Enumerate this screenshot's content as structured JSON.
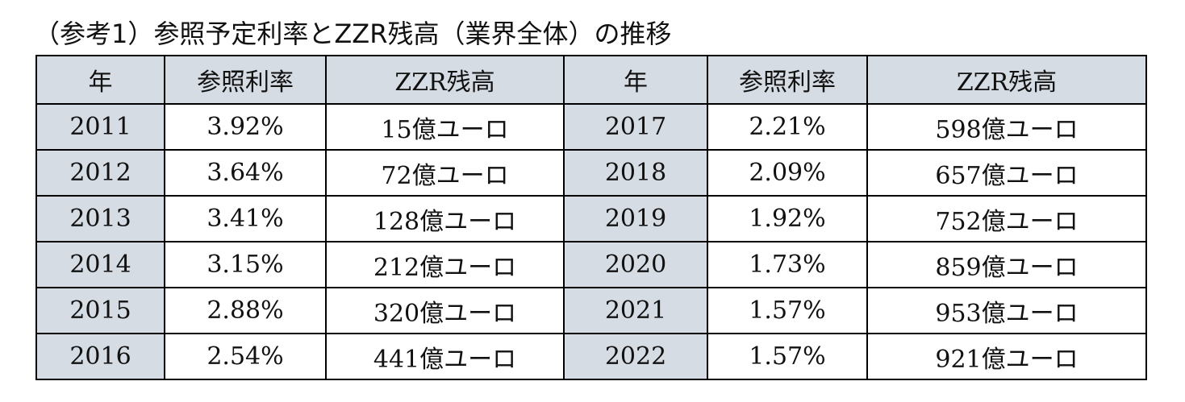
{
  "title": "（参考1）参照予定利率とZZR残高（業界全体）の推移",
  "headers": [
    "年",
    "参照利率",
    "ZZR残高",
    "年",
    "参照利率",
    "ZZR残高"
  ],
  "rows": [
    [
      "2011",
      "3.92%",
      "15億ユーロ",
      "2017",
      "2.21%",
      "598億ユーロ"
    ],
    [
      "2012",
      "3.64%",
      "72億ユーロ",
      "2018",
      "2.09%",
      "657億ユーロ"
    ],
    [
      "2013",
      "3.41%",
      "128億ユーロ",
      "2019",
      "1.92%",
      "752億ユーロ"
    ],
    [
      "2014",
      "3.15%",
      "212億ユーロ",
      "2020",
      "1.73%",
      "859億ユーロ"
    ],
    [
      "2015",
      "2.88%",
      "320億ユーロ",
      "2021",
      "1.57%",
      "953億ユーロ"
    ],
    [
      "2016",
      "2.54%",
      "441億ユーロ",
      "2022",
      "1.57%",
      "921億ユーロ"
    ]
  ],
  "colors": {
    "header_bg": "#d6dce4",
    "border": "#000000"
  }
}
